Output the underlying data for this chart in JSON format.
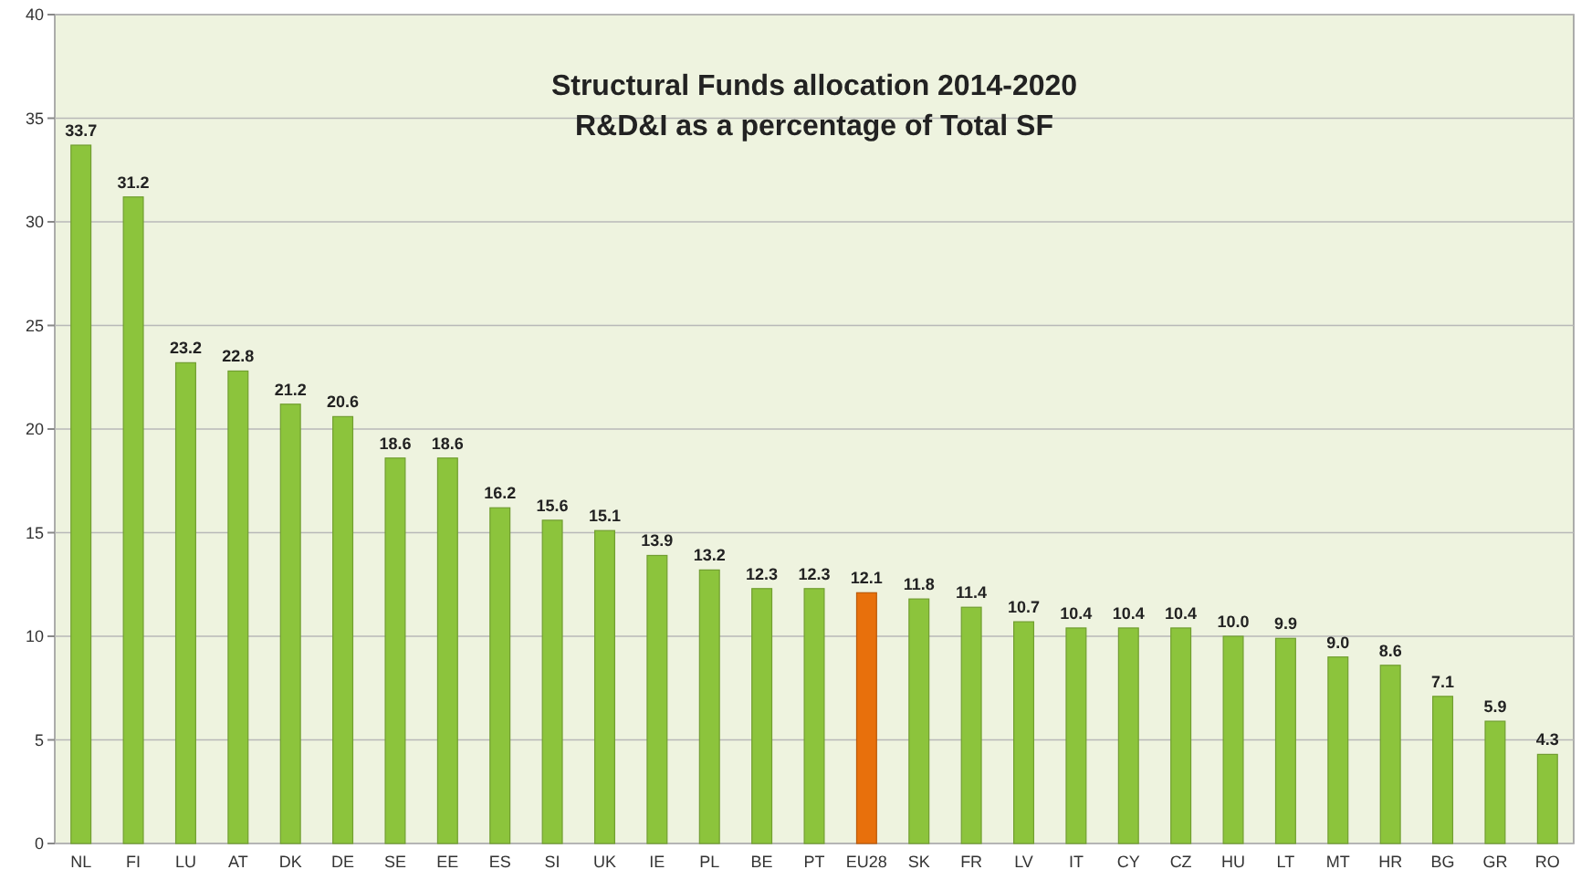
{
  "chart_data": {
    "type": "bar",
    "title": "Structural Funds allocation 2014-2020",
    "subtitle": "R&D&I as a percentage of Total SF",
    "categories": [
      "NL",
      "FI",
      "LU",
      "AT",
      "DK",
      "DE",
      "SE",
      "EE",
      "ES",
      "SI",
      "UK",
      "IE",
      "PL",
      "BE",
      "PT",
      "EU28",
      "SK",
      "FR",
      "LV",
      "IT",
      "CY",
      "CZ",
      "HU",
      "LT",
      "MT",
      "HR",
      "BG",
      "GR",
      "RO"
    ],
    "values": [
      33.7,
      31.2,
      23.2,
      22.8,
      21.2,
      20.6,
      18.6,
      18.6,
      16.2,
      15.6,
      15.1,
      13.9,
      13.2,
      12.3,
      12.3,
      12.1,
      11.8,
      11.4,
      10.7,
      10.4,
      10.4,
      10.4,
      10.0,
      9.9,
      9.0,
      8.6,
      7.1,
      5.9,
      4.3
    ],
    "colors": [
      "#8cc43c",
      "#8cc43c",
      "#8cc43c",
      "#8cc43c",
      "#8cc43c",
      "#8cc43c",
      "#8cc43c",
      "#8cc43c",
      "#8cc43c",
      "#8cc43c",
      "#8cc43c",
      "#8cc43c",
      "#8cc43c",
      "#8cc43c",
      "#8cc43c",
      "#e8700c",
      "#8cc43c",
      "#8cc43c",
      "#8cc43c",
      "#8cc43c",
      "#8cc43c",
      "#8cc43c",
      "#8cc43c",
      "#8cc43c",
      "#8cc43c",
      "#8cc43c",
      "#8cc43c",
      "#8cc43c",
      "#8cc43c"
    ],
    "value_labels": [
      "33.7",
      "31.2",
      "23.2",
      "22.8",
      "21.2",
      "20.6",
      "18.6",
      "18.6",
      "16.2",
      "15.6",
      "15.1",
      "13.9",
      "13.2",
      "12.3",
      "12.3",
      "12.1",
      "11.8",
      "11.4",
      "10.7",
      "10.4",
      "10.4",
      "10.4",
      "10.0",
      "9.9",
      "9.0",
      "8.6",
      "7.1",
      "5.9",
      "4.3"
    ],
    "ylim": [
      0,
      40
    ],
    "yticks": [
      0,
      5,
      10,
      15,
      20,
      25,
      30,
      35,
      40
    ],
    "grid": "y"
  }
}
